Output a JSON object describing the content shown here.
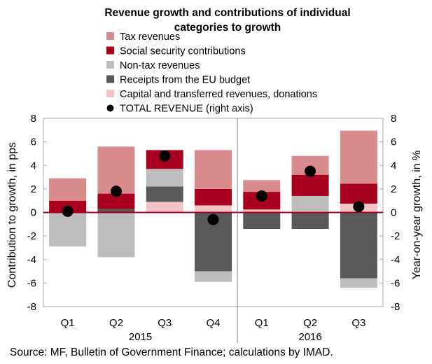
{
  "chart_data": {
    "type": "bar",
    "stacked": true,
    "title_lines": [
      "Revenue growth and contributions of individual",
      "categories to growth"
    ],
    "source": "Source: MF, Bulletin of Government Finance; calculations by IMAD.",
    "ylabel_left": "Contribution to growth, in pps",
    "ylabel_right": "Year-on-year growth, in %",
    "ylim": [
      -8,
      8
    ],
    "yticks": [
      -8,
      -6,
      -4,
      -2,
      0,
      2,
      4,
      6,
      8
    ],
    "grid": false,
    "legend_position": "top",
    "categories": [
      "Q1",
      "Q2",
      "Q3",
      "Q4",
      "Q1",
      "Q2",
      "Q3"
    ],
    "year_groups": [
      {
        "label": "2015",
        "start": 0,
        "end": 3
      },
      {
        "label": "2016",
        "start": 4,
        "end": 6
      }
    ],
    "series": [
      {
        "name": "Tax revenues",
        "color": "#d98a8c",
        "kind": "bar",
        "values": [
          1.9,
          4.0,
          0.0,
          3.3,
          1.0,
          1.6,
          4.5
        ]
      },
      {
        "name": "Social security contributions",
        "color": "#a8001e",
        "kind": "bar",
        "values": [
          1.0,
          1.3,
          1.6,
          1.4,
          1.5,
          1.8,
          1.7
        ]
      },
      {
        "name": "Non-tax revenues",
        "color": "#bdbdbd",
        "kind": "bar",
        "values": [
          -2.9,
          -3.8,
          1.5,
          -0.9,
          0.0,
          1.3,
          -0.8
        ]
      },
      {
        "name": "Receipts from the EU budget",
        "color": "#595959",
        "kind": "bar",
        "values": [
          0.0,
          0.3,
          1.3,
          -5.0,
          -1.4,
          -1.4,
          -5.6
        ]
      },
      {
        "name": "Capital and transferred revenues, donations",
        "color": "#f2c4c4",
        "kind": "bar",
        "values": [
          0.0,
          0.0,
          0.9,
          0.6,
          0.25,
          0.1,
          0.75
        ]
      },
      {
        "name": "TOTAL REVENUE (right axis)",
        "color": "#000000",
        "kind": "point",
        "values": [
          0.1,
          1.8,
          4.8,
          -0.6,
          1.4,
          3.5,
          0.5
        ]
      }
    ],
    "bar_stack_order": [
      {
        "positive": [
          4,
          3,
          2,
          1,
          0
        ],
        "negative": [
          4,
          3,
          2,
          1,
          0
        ]
      },
      {
        "positive": [
          3,
          1,
          0
        ],
        "negative": [
          2
        ]
      },
      {
        "positive": [
          4,
          3,
          2,
          1,
          0
        ],
        "negative": [
          0
        ]
      },
      {
        "positive": [
          4,
          1,
          0
        ],
        "negative": [
          3,
          2
        ]
      },
      {
        "positive": [
          4,
          1,
          0
        ],
        "negative": [
          3
        ]
      },
      {
        "positive": [
          4,
          2,
          1,
          0
        ],
        "negative": [
          3
        ]
      },
      {
        "positive": [
          4,
          1,
          0
        ],
        "negative": [
          3,
          2
        ]
      }
    ]
  }
}
